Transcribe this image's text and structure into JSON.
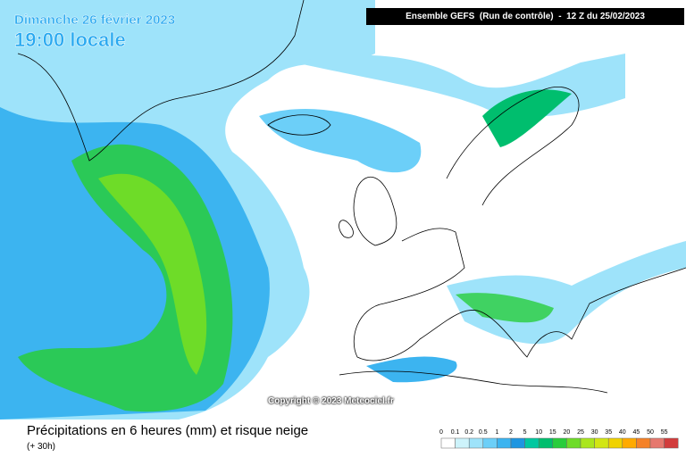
{
  "header": {
    "date": "Dimanche 26 février 2023",
    "time": "19:00 locale",
    "run": "Ensemble GEFS  (Run de contrôle)  -  12 Z du 25/02/2023"
  },
  "copyright": "Copyright © 2023 Meteociel.fr",
  "caption": {
    "title": "Précipitations en 6 heures (mm) et risque neige",
    "subtitle": "(+ 30h)"
  },
  "legend": {
    "labels": [
      0,
      0.1,
      0.2,
      0.5,
      1,
      2,
      5,
      10,
      15,
      20,
      25,
      30,
      35,
      40,
      45,
      50,
      55
    ],
    "colors": [
      "#ffffff",
      "#cdf3fb",
      "#9ee3fa",
      "#6ccff8",
      "#3cb4f0",
      "#1e96e1",
      "#00c8a0",
      "#00be6e",
      "#28cd3c",
      "#6edc28",
      "#aae61e",
      "#d2e614",
      "#f0d200",
      "#ffaa00",
      "#f58228",
      "#e6786e",
      "#d23c3c"
    ]
  }
}
